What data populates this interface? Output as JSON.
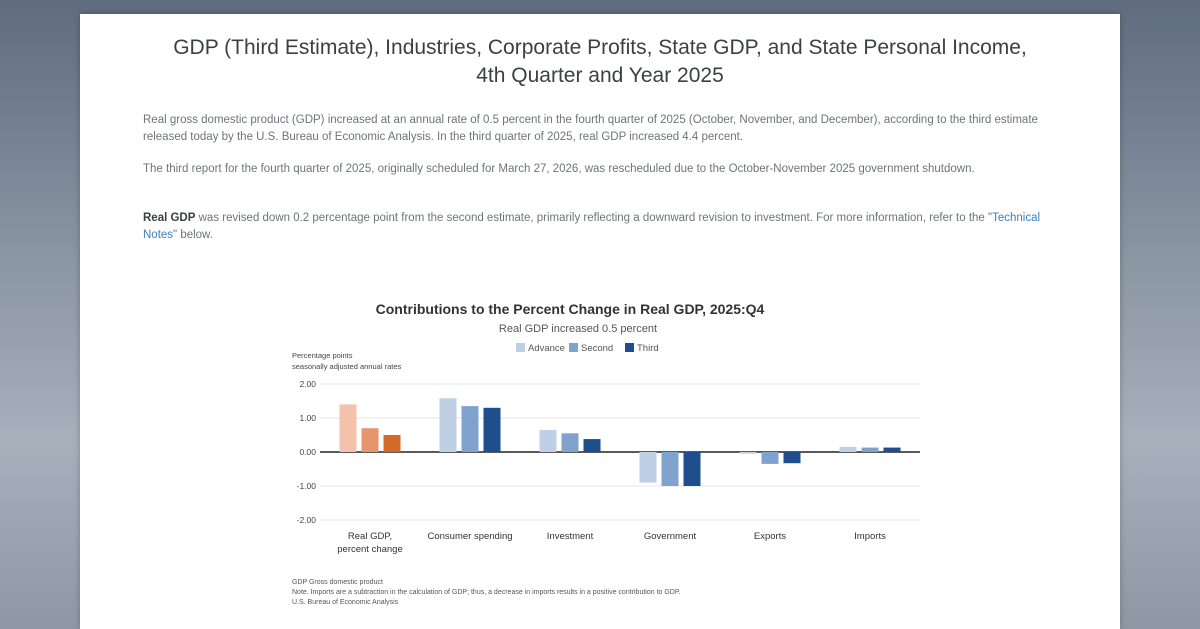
{
  "title": {
    "line1": "GDP (Third Estimate), Industries, Corporate Profits, State GDP, and State Personal Income,",
    "line2": "4th Quarter and Year 2025"
  },
  "paragraphs": {
    "p1": "Real gross domestic product (GDP) increased at an annual rate of 0.5 percent in the fourth quarter of 2025 (October, November, and December), according to the third estimate released today by the U.S. Bureau of Economic Analysis. In the third quarter of 2025, real GDP increased 4.4 percent.",
    "p2": "The third report for the fourth quarter of 2025, originally scheduled for March 27, 2026, was rescheduled due to the October-November 2025 government shutdown.",
    "p3_bold": "Real GDP",
    "p3_text": " was revised down 0.2 percentage point from the second estimate, primarily reflecting a downward revision to investment. For more information, refer to the ",
    "p3_link": "\"Technical Notes\"",
    "p3_end": " below."
  },
  "chart_data": {
    "type": "bar",
    "title": "Contributions to the Percent Change in Real GDP, 2025:Q4",
    "subtitle": "Real GDP increased 0.5 percent",
    "ylabel_line1": "Percentage points",
    "ylabel_line2": "seasonally adjusted annual rates",
    "ylim": [
      -2.0,
      2.0
    ],
    "yticks": [
      "2.00",
      "1.00",
      "0.00",
      "-1.00",
      "-2.00"
    ],
    "ytick_values": [
      2,
      1,
      0,
      -1,
      -2
    ],
    "legend_position": "top",
    "categories": [
      "Real GDP, percent change",
      "Consumer spending",
      "Investment",
      "Government",
      "Exports",
      "Imports"
    ],
    "category_labels": [
      [
        "Real GDP,",
        "percent change"
      ],
      [
        "Consumer spending"
      ],
      [
        "Investment"
      ],
      [
        "Government"
      ],
      [
        "Exports"
      ],
      [
        "Imports"
      ]
    ],
    "series": [
      {
        "name": "Advance",
        "values": [
          1.4,
          1.58,
          0.65,
          -0.9,
          -0.05,
          0.15
        ]
      },
      {
        "name": "Second",
        "values": [
          0.7,
          1.35,
          0.55,
          -1.0,
          -0.35,
          0.13
        ]
      },
      {
        "name": "Third",
        "values": [
          0.5,
          1.3,
          0.38,
          -1.0,
          -0.33,
          0.13
        ]
      }
    ],
    "colors": {
      "first_category": [
        "#f3c2aa",
        "#e8956c",
        "#d46a2a"
      ],
      "other_categories": [
        "#bfd0e6",
        "#7fa3cc",
        "#1f4e8c"
      ],
      "legend": [
        "#bfd0e6",
        "#7fa3cc",
        "#1f4e8c"
      ]
    },
    "notes": [
      "GDP Gross domestic product",
      "Note. Imports are a subtraction in the calculation of GDP; thus, a decrease in imports results in a positive contribution to GDP.",
      "U.S. Bureau of Economic Analysis"
    ]
  }
}
